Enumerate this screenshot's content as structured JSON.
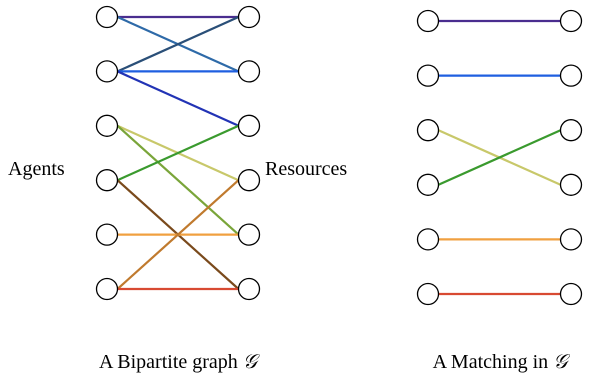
{
  "diagram": {
    "left_graph": {
      "agents_label": "Agents",
      "resources_label": "Resources",
      "caption": {
        "prefix": "A Bipartite graph",
        "symbol": "𝒢"
      },
      "agents": 6,
      "resources": 6,
      "edges": [
        {
          "from": 0,
          "to": 0,
          "color": "#4a2d8f"
        },
        {
          "from": 0,
          "to": 1,
          "color": "#2e6aa8"
        },
        {
          "from": 1,
          "to": 0,
          "color": "#2a4f78"
        },
        {
          "from": 1,
          "to": 1,
          "color": "#1f5fe0"
        },
        {
          "from": 1,
          "to": 2,
          "color": "#2233b5"
        },
        {
          "from": 2,
          "to": 3,
          "color": "#c8c86a"
        },
        {
          "from": 2,
          "to": 4,
          "color": "#7aa53a"
        },
        {
          "from": 3,
          "to": 2,
          "color": "#3a9a2e"
        },
        {
          "from": 3,
          "to": 5,
          "color": "#7a4a1c"
        },
        {
          "from": 4,
          "to": 4,
          "color": "#f0a040"
        },
        {
          "from": 5,
          "to": 3,
          "color": "#c07a2e"
        },
        {
          "from": 5,
          "to": 5,
          "color": "#d84a32"
        }
      ]
    },
    "right_graph": {
      "caption": {
        "prefix": "A Matching in",
        "symbol": "𝒢"
      },
      "agents": 6,
      "resources": 6,
      "edges": [
        {
          "from": 0,
          "to": 0,
          "color": "#4a2d8f"
        },
        {
          "from": 1,
          "to": 1,
          "color": "#1f5fe0"
        },
        {
          "from": 2,
          "to": 3,
          "color": "#c8c86a"
        },
        {
          "from": 3,
          "to": 2,
          "color": "#3a9a2e"
        },
        {
          "from": 4,
          "to": 4,
          "color": "#f0a040"
        },
        {
          "from": 5,
          "to": 5,
          "color": "#d84a32"
        }
      ]
    }
  }
}
